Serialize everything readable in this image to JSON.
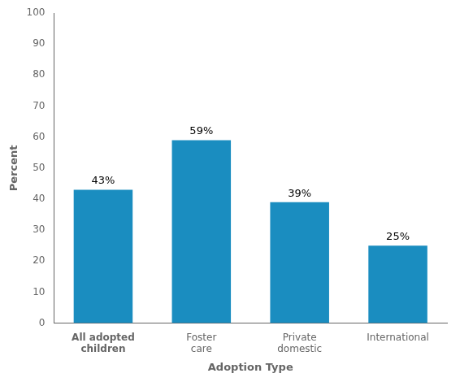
{
  "chart_data": {
    "type": "bar",
    "categories": [
      "All adopted\nchildren",
      "Foster\ncare",
      "Private\ndomestic",
      "International"
    ],
    "values": [
      43,
      59,
      39,
      25
    ],
    "value_labels": [
      "43%",
      "59%",
      "39%",
      "25%"
    ],
    "data_labels": true,
    "color": "#1a8dc0",
    "xlabel": "Adoption Type",
    "ylabel": "Percent",
    "ylim": [
      0,
      100
    ],
    "yticks": [
      0,
      10,
      20,
      30,
      40,
      50,
      60,
      70,
      80,
      90,
      100
    ],
    "grid": false
  }
}
